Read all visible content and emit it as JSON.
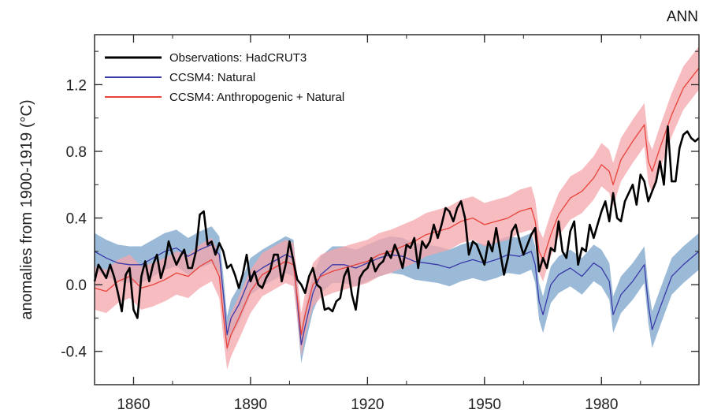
{
  "chart_data": {
    "type": "line",
    "corner_label": "ANN",
    "ylabel": "anomalies from 1900-1919 (°C)",
    "xlabel": "",
    "xlim": [
      1850,
      2005
    ],
    "ylim": [
      -0.6,
      1.5
    ],
    "x_ticks": [
      1860,
      1890,
      1920,
      1950,
      1980
    ],
    "x_tick_labels": [
      "1860",
      "1890",
      "1920",
      "1950",
      "1980"
    ],
    "y_ticks": [
      -0.4,
      0.0,
      0.4,
      0.8,
      1.2
    ],
    "y_tick_labels": [
      "-0.4",
      "0.0",
      "0.4",
      "0.8",
      "1.2"
    ],
    "legend_position": "top-left",
    "colors": {
      "observations": "#000000",
      "natural": "#3a3aa8",
      "natural_band": "#8aaed0",
      "anthro": "#e8423a",
      "anthro_band": "#f4a5ab"
    },
    "series": [
      {
        "name": "Observations: HadCRUT3",
        "color": "#000000",
        "x": [
          1850,
          1851,
          1852,
          1853,
          1854,
          1855,
          1856,
          1857,
          1858,
          1859,
          1860,
          1861,
          1862,
          1863,
          1864,
          1865,
          1866,
          1867,
          1868,
          1869,
          1870,
          1871,
          1872,
          1873,
          1874,
          1875,
          1876,
          1877,
          1878,
          1879,
          1880,
          1881,
          1882,
          1883,
          1884,
          1885,
          1886,
          1887,
          1888,
          1889,
          1890,
          1891,
          1892,
          1893,
          1894,
          1895,
          1896,
          1897,
          1898,
          1899,
          1900,
          1901,
          1902,
          1903,
          1904,
          1905,
          1906,
          1907,
          1908,
          1909,
          1910,
          1911,
          1912,
          1913,
          1914,
          1915,
          1916,
          1917,
          1918,
          1919,
          1920,
          1921,
          1922,
          1923,
          1924,
          1925,
          1926,
          1927,
          1928,
          1929,
          1930,
          1931,
          1932,
          1933,
          1934,
          1935,
          1936,
          1937,
          1938,
          1939,
          1940,
          1941,
          1942,
          1943,
          1944,
          1945,
          1946,
          1947,
          1948,
          1949,
          1950,
          1951,
          1952,
          1953,
          1954,
          1955,
          1956,
          1957,
          1958,
          1959,
          1960,
          1961,
          1962,
          1963,
          1964,
          1965,
          1966,
          1967,
          1968,
          1969,
          1970,
          1971,
          1972,
          1973,
          1974,
          1975,
          1976,
          1977,
          1978,
          1979,
          1980,
          1981,
          1982,
          1983,
          1984,
          1985,
          1986,
          1987,
          1988,
          1989,
          1990,
          1991,
          1992,
          1993,
          1994,
          1995,
          1996,
          1997,
          1998,
          1999,
          2000,
          2001,
          2002,
          2003,
          2004,
          2005
        ],
        "values": [
          0.02,
          0.12,
          0.08,
          0.04,
          0.12,
          0.05,
          -0.05,
          -0.16,
          0.06,
          0.1,
          -0.15,
          -0.2,
          0.05,
          0.14,
          0.02,
          0.12,
          0.18,
          0.04,
          0.12,
          0.26,
          0.18,
          0.12,
          0.17,
          0.21,
          0.1,
          0.1,
          0.2,
          0.42,
          0.44,
          0.24,
          0.26,
          0.18,
          0.25,
          0.2,
          0.1,
          0.12,
          0.06,
          -0.02,
          0.06,
          0.18,
          0.02,
          0.08,
          0.0,
          -0.02,
          0.04,
          0.08,
          0.18,
          0.18,
          0.02,
          0.12,
          0.26,
          0.14,
          0.03,
          0.0,
          -0.05,
          0.05,
          0.1,
          0.0,
          -0.02,
          -0.15,
          -0.14,
          -0.16,
          -0.1,
          -0.08,
          0.05,
          0.1,
          -0.06,
          -0.15,
          0.04,
          0.08,
          0.1,
          0.16,
          0.08,
          0.12,
          0.14,
          0.2,
          0.16,
          0.24,
          0.18,
          0.1,
          0.24,
          0.22,
          0.28,
          0.1,
          0.26,
          0.22,
          0.26,
          0.36,
          0.28,
          0.36,
          0.46,
          0.44,
          0.38,
          0.46,
          0.5,
          0.4,
          0.18,
          0.26,
          0.24,
          0.18,
          0.12,
          0.26,
          0.2,
          0.34,
          0.2,
          0.06,
          0.16,
          0.32,
          0.36,
          0.26,
          0.18,
          0.24,
          0.3,
          0.34,
          0.08,
          0.16,
          0.1,
          0.22,
          0.2,
          0.38,
          0.2,
          0.16,
          0.32,
          0.38,
          0.12,
          0.22,
          0.2,
          0.36,
          0.28,
          0.36,
          0.44,
          0.5,
          0.38,
          0.55,
          0.4,
          0.38,
          0.5,
          0.55,
          0.6,
          0.48,
          0.66,
          0.62,
          0.5,
          0.56,
          0.62,
          0.74,
          0.6,
          0.95,
          0.62,
          0.62,
          0.82,
          0.9,
          0.92,
          0.88,
          0.86,
          0.88
        ]
      },
      {
        "name": "CCSM4: Natural",
        "color": "#3a3aa8",
        "x": [
          1850,
          1853,
          1856,
          1859,
          1862,
          1865,
          1868,
          1871,
          1874,
          1877,
          1880,
          1882,
          1883,
          1884,
          1885,
          1887,
          1890,
          1893,
          1896,
          1899,
          1901,
          1902,
          1903,
          1904,
          1906,
          1908,
          1911,
          1914,
          1917,
          1920,
          1923,
          1926,
          1929,
          1932,
          1935,
          1938,
          1941,
          1944,
          1947,
          1950,
          1953,
          1956,
          1959,
          1962,
          1963,
          1964,
          1965,
          1967,
          1969,
          1972,
          1975,
          1978,
          1980,
          1982,
          1983,
          1985,
          1988,
          1991,
          1992,
          1993,
          1995,
          1998,
          2001,
          2005
        ],
        "values": [
          0.2,
          0.16,
          0.13,
          0.12,
          0.12,
          0.16,
          0.2,
          0.22,
          0.17,
          0.21,
          0.24,
          0.18,
          -0.05,
          -0.3,
          -0.2,
          -0.12,
          0.05,
          0.1,
          0.14,
          0.18,
          0.16,
          -0.1,
          -0.36,
          -0.25,
          -0.05,
          0.06,
          0.12,
          0.12,
          0.1,
          0.13,
          0.16,
          0.18,
          0.17,
          0.14,
          0.13,
          0.12,
          0.1,
          0.13,
          0.15,
          0.13,
          0.15,
          0.18,
          0.17,
          0.2,
          0.12,
          -0.1,
          -0.18,
          0.0,
          0.06,
          0.1,
          0.05,
          0.13,
          0.1,
          0.02,
          -0.18,
          -0.06,
          0.02,
          0.12,
          -0.12,
          -0.27,
          -0.14,
          0.05,
          0.12,
          0.2
        ]
      },
      {
        "name": "CCSM4: Anthropogenic + Natural",
        "color": "#e8423a",
        "x": [
          1850,
          1853,
          1856,
          1859,
          1862,
          1865,
          1868,
          1871,
          1874,
          1877,
          1880,
          1882,
          1883,
          1884,
          1885,
          1887,
          1890,
          1893,
          1896,
          1899,
          1901,
          1902,
          1903,
          1904,
          1906,
          1908,
          1911,
          1914,
          1917,
          1920,
          1923,
          1926,
          1929,
          1932,
          1935,
          1938,
          1941,
          1944,
          1947,
          1950,
          1953,
          1956,
          1959,
          1962,
          1963,
          1964,
          1965,
          1967,
          1969,
          1972,
          1975,
          1978,
          1980,
          1982,
          1983,
          1985,
          1988,
          1991,
          1992,
          1993,
          1995,
          1998,
          2001,
          2005
        ],
        "values": [
          -0.02,
          -0.04,
          0.02,
          0.05,
          -0.02,
          0.0,
          0.03,
          0.07,
          0.05,
          0.11,
          0.15,
          0.05,
          -0.18,
          -0.38,
          -0.3,
          -0.2,
          -0.04,
          0.06,
          0.1,
          0.14,
          0.12,
          -0.08,
          -0.3,
          -0.18,
          0.0,
          0.05,
          0.08,
          0.1,
          0.12,
          0.14,
          0.18,
          0.2,
          0.23,
          0.26,
          0.3,
          0.32,
          0.34,
          0.38,
          0.4,
          0.36,
          0.38,
          0.4,
          0.44,
          0.46,
          0.38,
          0.2,
          0.15,
          0.3,
          0.42,
          0.52,
          0.56,
          0.64,
          0.72,
          0.68,
          0.6,
          0.75,
          0.86,
          0.96,
          0.74,
          0.68,
          0.82,
          1.02,
          1.18,
          1.3
        ]
      }
    ]
  }
}
